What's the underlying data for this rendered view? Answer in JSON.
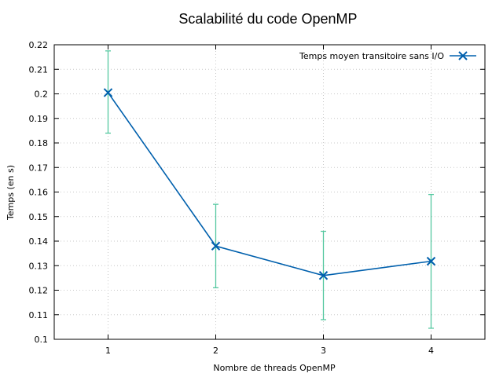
{
  "chart_data": {
    "type": "line",
    "title": "Scalabilité du code OpenMP",
    "xlabel": "Nombre de threads OpenMP",
    "ylabel": "Temps (en s)",
    "xlim": [
      0.5,
      4.5
    ],
    "ylim": [
      0.1,
      0.22
    ],
    "x_ticks": [
      1,
      2,
      3,
      4
    ],
    "x_tick_labels": [
      "1",
      "2",
      "3",
      "4"
    ],
    "y_ticks": [
      0.1,
      0.11,
      0.12,
      0.13,
      0.14,
      0.15,
      0.16,
      0.17,
      0.18,
      0.19,
      0.2,
      0.21,
      0.22
    ],
    "y_tick_labels": [
      "0.1",
      "0.11",
      "0.12",
      "0.13",
      "0.14",
      "0.15",
      "0.16",
      "0.17",
      "0.18",
      "0.19",
      "0.2",
      "0.21",
      "0.22"
    ],
    "grid": true,
    "legend_position": "top-right",
    "series": [
      {
        "name": "Temps moyen transitoire sans I/O",
        "color": "#0060ad",
        "errorbar_color": "#55c8a0",
        "marker": "x-cross",
        "x": [
          1,
          2,
          3,
          4
        ],
        "y": [
          0.2005,
          0.138,
          0.126,
          0.1318
        ],
        "y_low": [
          0.184,
          0.121,
          0.108,
          0.1045
        ],
        "y_high": [
          0.2175,
          0.155,
          0.144,
          0.159
        ]
      }
    ]
  }
}
